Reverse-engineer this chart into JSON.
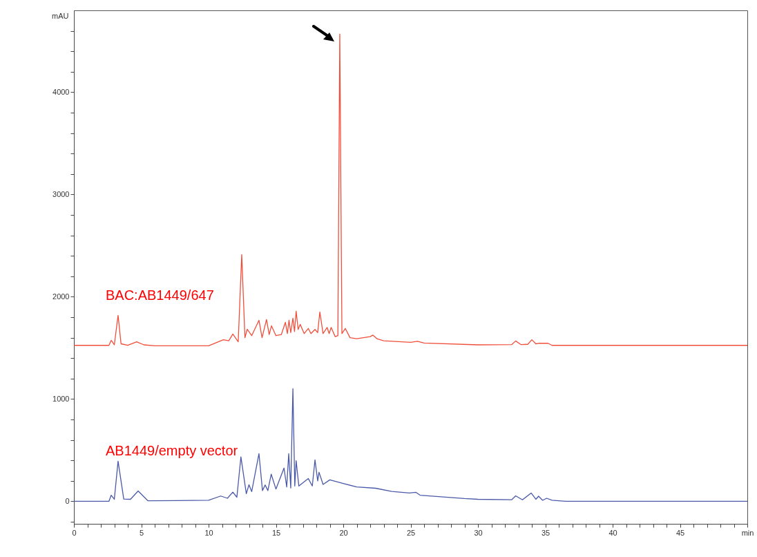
{
  "chart_data": {
    "type": "line",
    "ylabel": "mAU",
    "xlim": [
      0,
      50
    ],
    "ylim": [
      -220,
      4800
    ],
    "xticks": [
      0,
      {
        "value": 1,
        "label": null
      },
      {
        "value": 2,
        "label": null
      },
      {
        "value": 3,
        "label": null
      },
      {
        "value": 4,
        "label": null
      },
      5,
      {
        "value": 6,
        "label": null
      },
      {
        "value": 7,
        "label": null
      },
      {
        "value": 8,
        "label": null
      },
      {
        "value": 9,
        "label": null
      },
      10,
      {
        "value": 11,
        "label": null
      },
      {
        "value": 12,
        "label": null
      },
      {
        "value": 13,
        "label": null
      },
      {
        "value": 14,
        "label": null
      },
      15,
      {
        "value": 16,
        "label": null
      },
      {
        "value": 17,
        "label": null
      },
      {
        "value": 18,
        "label": null
      },
      {
        "value": 19,
        "label": null
      },
      20,
      {
        "value": 21,
        "label": null
      },
      {
        "value": 22,
        "label": null
      },
      {
        "value": 23,
        "label": null
      },
      {
        "value": 24,
        "label": null
      },
      25,
      {
        "value": 26,
        "label": null
      },
      {
        "value": 27,
        "label": null
      },
      {
        "value": 28,
        "label": null
      },
      {
        "value": 29,
        "label": null
      },
      30,
      {
        "value": 31,
        "label": null
      },
      {
        "value": 32,
        "label": null
      },
      {
        "value": 33,
        "label": null
      },
      {
        "value": 34,
        "label": null
      },
      35,
      {
        "value": 36,
        "label": null
      },
      {
        "value": 37,
        "label": null
      },
      {
        "value": 38,
        "label": null
      },
      {
        "value": 39,
        "label": null
      },
      40,
      {
        "value": 41,
        "label": null
      },
      {
        "value": 42,
        "label": null
      },
      {
        "value": 43,
        "label": null
      },
      {
        "value": 44,
        "label": null
      },
      45,
      {
        "value": 46,
        "label": null
      },
      {
        "value": 47,
        "label": null
      },
      {
        "value": 48,
        "label": null
      },
      {
        "value": 49,
        "label": null
      },
      {
        "value": 50,
        "label": "min"
      }
    ],
    "yticks": [
      {
        "value": -200,
        "label": null
      },
      0,
      {
        "value": 200,
        "label": null
      },
      {
        "value": 400,
        "label": null
      },
      {
        "value": 600,
        "label": null
      },
      {
        "value": 800,
        "label": null
      },
      1000,
      {
        "value": 1200,
        "label": null
      },
      {
        "value": 1400,
        "label": null
      },
      {
        "value": 1600,
        "label": null
      },
      {
        "value": 1800,
        "label": null
      },
      2000,
      {
        "value": 2200,
        "label": null
      },
      {
        "value": 2400,
        "label": null
      },
      {
        "value": 2600,
        "label": null
      },
      {
        "value": 2800,
        "label": null
      },
      3000,
      {
        "value": 3200,
        "label": null
      },
      {
        "value": 3400,
        "label": null
      },
      {
        "value": 3600,
        "label": null
      },
      {
        "value": 3800,
        "label": null
      },
      4000,
      {
        "value": 4200,
        "label": null
      },
      {
        "value": 4400,
        "label": null
      },
      {
        "value": 4600,
        "label": null
      }
    ],
    "grid": false,
    "legend": false,
    "line_style": "solid",
    "series": [
      {
        "name": "BAC:AB1449/647",
        "color": "#f04e3a",
        "x": [
          0,
          2.6,
          2.77,
          3.0,
          3.28,
          3.5,
          4.0,
          4.66,
          5.2,
          6,
          10,
          11.1,
          11.5,
          11.8,
          12.2,
          12.46,
          12.7,
          12.87,
          13.2,
          13.74,
          13.97,
          14.3,
          14.5,
          14.67,
          15.0,
          15.4,
          15.7,
          15.85,
          15.97,
          16.1,
          16.26,
          16.38,
          16.5,
          16.65,
          16.8,
          17.1,
          17.4,
          17.6,
          17.9,
          18.1,
          18.26,
          18.5,
          18.8,
          18.95,
          19.1,
          19.4,
          19.6,
          19.74,
          19.9,
          20.15,
          20.5,
          21,
          22,
          22.2,
          22.5,
          23,
          25,
          25.5,
          26,
          30,
          32.5,
          32.8,
          33.2,
          33.7,
          34.0,
          34.3,
          34.5,
          35.2,
          35.5,
          50
        ],
        "values": [
          1525,
          1525,
          1574,
          1530,
          1818,
          1540,
          1525,
          1560,
          1530,
          1520,
          1520,
          1580,
          1570,
          1635,
          1560,
          2412,
          1600,
          1682,
          1620,
          1770,
          1600,
          1777,
          1630,
          1716,
          1620,
          1630,
          1750,
          1640,
          1770,
          1650,
          1790,
          1660,
          1858,
          1680,
          1730,
          1640,
          1690,
          1640,
          1680,
          1650,
          1851,
          1640,
          1700,
          1640,
          1700,
          1610,
          1620,
          4568,
          1640,
          1690,
          1600,
          1590,
          1610,
          1625,
          1590,
          1570,
          1555,
          1565,
          1548,
          1530,
          1532,
          1568,
          1532,
          1535,
          1580,
          1540,
          1545,
          1545,
          1525,
          1525
        ]
      },
      {
        "name": "AB1449/empty vector",
        "color": "#4a58a8",
        "x": [
          0,
          2.6,
          2.77,
          3.0,
          3.28,
          3.7,
          4.2,
          4.77,
          5.5,
          10,
          10.9,
          11.4,
          11.8,
          12.1,
          12.4,
          12.8,
          13.0,
          13.2,
          13.74,
          14.0,
          14.2,
          14.4,
          14.65,
          15.0,
          15.6,
          15.8,
          15.95,
          16.1,
          16.26,
          16.4,
          16.5,
          16.7,
          17.4,
          17.7,
          17.9,
          18.1,
          18.2,
          18.5,
          19.0,
          20,
          21,
          22.4,
          23.6,
          24.9,
          25.4,
          25.7,
          29.0,
          30,
          32.5,
          32.8,
          33.3,
          33.95,
          34.3,
          34.5,
          34.8,
          35.1,
          35.5,
          36.5,
          50
        ],
        "values": [
          0,
          0,
          60,
          20,
          392,
          22,
          20,
          101,
          5,
          10,
          52,
          30,
          90,
          40,
          435,
          75,
          162,
          95,
          466,
          105,
          160,
          105,
          265,
          120,
          325,
          140,
          466,
          130,
          1101,
          150,
          398,
          150,
          223,
          150,
          405,
          200,
          284,
          165,
          210,
          175,
          140,
          128,
          97,
          81,
          88,
          60,
          27,
          20,
          15,
          54,
          15,
          81,
          20,
          50,
          10,
          30,
          10,
          0,
          0
        ]
      }
    ]
  }
}
